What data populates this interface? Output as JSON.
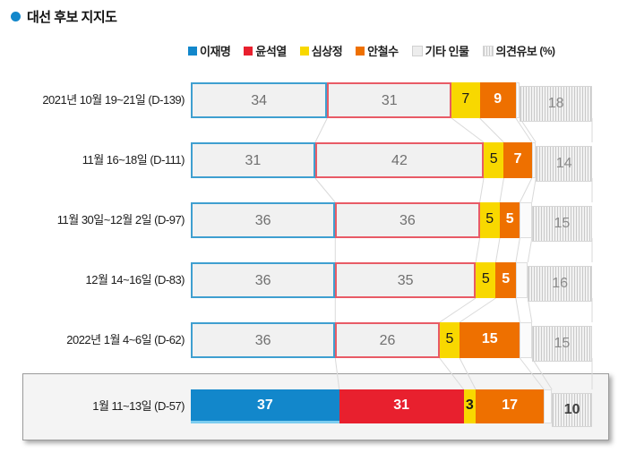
{
  "title": {
    "bullet_color": "#1287cb",
    "text": "대선 후보 지지도"
  },
  "legend_unit_suffix": "(%)",
  "colors": {
    "blue": "#1287cb",
    "blue_border": "#3f9fd0",
    "blue_bottom_edge": "#7ccdf0",
    "red": "#e8202e",
    "red_border": "#e85b66",
    "yellow": "#f8d800",
    "orange": "#ee7000",
    "outlined_fill": "#f1f1f1",
    "etc_fill": "#fbfbfb",
    "etc_border": "#dddddd",
    "striped_bg": "#f2f2f2",
    "striped_line": "#c9c9c9",
    "striped_border": "#d6d6d6",
    "connector": "#dadada",
    "value_gray": "#707070",
    "striped_value": "#8a8a8a",
    "striped_value_dark": "#3f3f3f",
    "label_text": "#1b1b1b",
    "highlight_fill": "#f4f4f4",
    "highlight_border": "#9b9b9b"
  },
  "chart_data": {
    "type": "bar",
    "orientation": "horizontal",
    "stacked": true,
    "unit": "%",
    "title": "대선 후보 지지도",
    "legend_position": "top",
    "axis": "none (values printed inside segments, each row totals 100%)",
    "categories": [
      "2021년 10월 19~21일 (D-139)",
      "11월 16~18일 (D-111)",
      "11월 30일~12월 2일 (D-97)",
      "12월 14~16일 (D-83)",
      "2022년 1월 4~6일 (D-62)",
      "1월 11~13일 (D-57)"
    ],
    "highlighted_category": "1월 11~13일 (D-57)",
    "series": [
      {
        "name": "이재명",
        "key": "lee-jae-myung",
        "style": "outlined-blue",
        "values": [
          34,
          31,
          36,
          36,
          36,
          37
        ]
      },
      {
        "name": "윤석열",
        "key": "yoon-suk-yeol",
        "style": "outlined-red",
        "values": [
          31,
          42,
          36,
          35,
          26,
          31
        ]
      },
      {
        "name": "심상정",
        "key": "sim-sang-jung",
        "style": "solid-yellow",
        "values": [
          7,
          5,
          5,
          5,
          5,
          3
        ]
      },
      {
        "name": "안철수",
        "key": "ahn-cheol-soo",
        "style": "solid-orange",
        "values": [
          9,
          7,
          5,
          5,
          15,
          17
        ]
      },
      {
        "name": "기타 인물",
        "key": "other-candidates",
        "style": "etc",
        "value_labels_hidden": true,
        "values": [
          1,
          1,
          3,
          3,
          3,
          2
        ]
      },
      {
        "name": "의견유보",
        "key": "undecided",
        "style": "striped",
        "suffix": "(%)",
        "values": [
          18,
          14,
          15,
          16,
          15,
          10
        ]
      }
    ]
  }
}
